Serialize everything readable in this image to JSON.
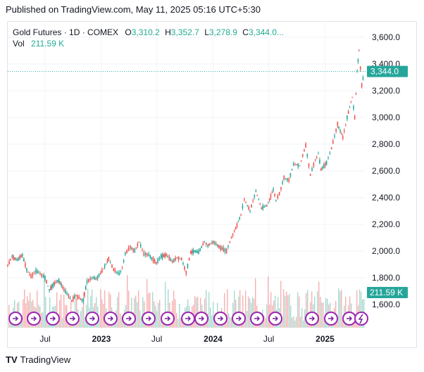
{
  "header": {
    "published": "Published on TradingView.com, May 11, 2025 05:16 UTC+5:30"
  },
  "legend": {
    "symbol": "Gold Futures · 1D · COMEX",
    "open_label": "O",
    "open": "3,310.2",
    "high_label": "H",
    "high": "3,352.7",
    "low_label": "L",
    "low": "3,278.9",
    "close_label": "C",
    "close": "3,344.0",
    "ellipsis": "...",
    "vol_label": "Vol",
    "vol": "211.59 K"
  },
  "footer": {
    "brand": "TradingView",
    "logo": "TV"
  },
  "chart_data": {
    "type": "line",
    "title": "Gold Futures · 1D · COMEX",
    "xlabel": "",
    "ylabel": "",
    "x_tick_labels": [
      "Jul",
      "2023",
      "Jul",
      "2024",
      "Jul",
      "2025"
    ],
    "y_tick_labels": [
      "3,600.0",
      "3,400.0",
      "3,200.0",
      "3,000.0",
      "2,800.0",
      "2,600.0",
      "2,400.0",
      "2,200.0",
      "2,000.0",
      "1,800.0",
      "1,600.0"
    ],
    "ylim": [
      1500,
      3650
    ],
    "grid": true,
    "price_tag": "3,344.0",
    "volume_tag": "211.59 K",
    "series": [
      {
        "values": [
          [
            "2022-03-01",
            1890
          ],
          [
            "2022-03-15",
            1960
          ],
          [
            "2022-04-01",
            1930
          ],
          [
            "2022-04-18",
            1970
          ],
          [
            "2022-05-02",
            1860
          ],
          [
            "2022-05-16",
            1810
          ],
          [
            "2022-06-01",
            1850
          ],
          [
            "2022-06-15",
            1830
          ],
          [
            "2022-07-01",
            1800
          ],
          [
            "2022-07-15",
            1710
          ],
          [
            "2022-08-01",
            1760
          ],
          [
            "2022-08-15",
            1780
          ],
          [
            "2022-09-01",
            1710
          ],
          [
            "2022-09-26",
            1630
          ],
          [
            "2022-10-10",
            1670
          ],
          [
            "2022-10-25",
            1640
          ],
          [
            "2022-11-03",
            1630
          ],
          [
            "2022-11-15",
            1770
          ],
          [
            "2022-12-01",
            1800
          ],
          [
            "2022-12-15",
            1790
          ],
          [
            "2023-01-03",
            1850
          ],
          [
            "2023-01-25",
            1940
          ],
          [
            "2023-02-10",
            1860
          ],
          [
            "2023-02-28",
            1830
          ],
          [
            "2023-03-10",
            1870
          ],
          [
            "2023-03-20",
            1980
          ],
          [
            "2023-04-05",
            2030
          ],
          [
            "2023-04-20",
            2000
          ],
          [
            "2023-05-04",
            2070
          ],
          [
            "2023-05-20",
            1980
          ],
          [
            "2023-06-05",
            1970
          ],
          [
            "2023-06-29",
            1910
          ],
          [
            "2023-07-15",
            1960
          ],
          [
            "2023-08-01",
            1970
          ],
          [
            "2023-08-21",
            1920
          ],
          [
            "2023-09-05",
            1950
          ],
          [
            "2023-09-20",
            1940
          ],
          [
            "2023-10-05",
            1840
          ],
          [
            "2023-10-20",
            1990
          ],
          [
            "2023-11-01",
            2000
          ],
          [
            "2023-11-15",
            1990
          ],
          [
            "2023-12-04",
            2070
          ],
          [
            "2023-12-15",
            2040
          ],
          [
            "2024-01-02",
            2070
          ],
          [
            "2024-01-20",
            2030
          ],
          [
            "2024-02-14",
            2000
          ],
          [
            "2024-03-01",
            2100
          ],
          [
            "2024-03-15",
            2170
          ],
          [
            "2024-04-01",
            2270
          ],
          [
            "2024-04-12",
            2390
          ],
          [
            "2024-04-22",
            2340
          ],
          [
            "2024-05-01",
            2300
          ],
          [
            "2024-05-20",
            2450
          ],
          [
            "2024-06-07",
            2320
          ],
          [
            "2024-06-25",
            2340
          ],
          [
            "2024-07-16",
            2460
          ],
          [
            "2024-07-25",
            2380
          ],
          [
            "2024-08-05",
            2430
          ],
          [
            "2024-08-20",
            2550
          ],
          [
            "2024-09-05",
            2530
          ],
          [
            "2024-09-20",
            2650
          ],
          [
            "2024-10-10",
            2640
          ],
          [
            "2024-10-30",
            2790
          ],
          [
            "2024-11-14",
            2570
          ],
          [
            "2024-11-25",
            2650
          ],
          [
            "2024-12-10",
            2730
          ],
          [
            "2024-12-19",
            2610
          ],
          [
            "2025-01-06",
            2660
          ],
          [
            "2025-01-22",
            2770
          ],
          [
            "2025-02-11",
            2950
          ],
          [
            "2025-02-28",
            2850
          ],
          [
            "2025-03-14",
            3000
          ],
          [
            "2025-03-31",
            3150
          ],
          [
            "2025-04-08",
            3000
          ],
          [
            "2025-04-16",
            3350
          ],
          [
            "2025-04-22",
            3500
          ],
          [
            "2025-05-01",
            3240
          ],
          [
            "2025-05-09",
            3344
          ]
        ]
      }
    ]
  }
}
